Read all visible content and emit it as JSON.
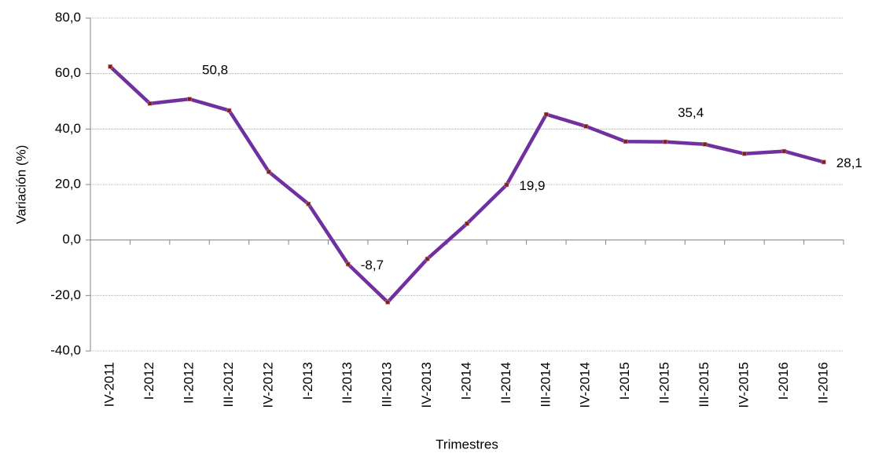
{
  "chart_data": {
    "type": "line",
    "x_label": "Trimestres",
    "y_label": "Variación (%)",
    "categories": [
      "IV-2011",
      "I-2012",
      "II-2012",
      "III-2012",
      "IV-2012",
      "I-2013",
      "II-2013",
      "III-2013",
      "IV-2013",
      "I-2014",
      "II-2014",
      "III-2014",
      "IV-2014",
      "I-2015",
      "II-2015",
      "III-2015",
      "IV-2015",
      "I-2016",
      "II-2016"
    ],
    "series": [
      {
        "name": "Variación",
        "color": "#7030a0",
        "values": [
          62.5,
          49.2,
          50.8,
          46.7,
          24.6,
          13.0,
          -8.7,
          -22.4,
          -6.8,
          5.9,
          19.9,
          45.3,
          41.0,
          35.5,
          35.4,
          34.5,
          31.1,
          32.0,
          28.1
        ],
        "value_labels": [
          null,
          null,
          "50,8",
          null,
          null,
          null,
          "-8,7",
          null,
          null,
          null,
          "19,9",
          null,
          null,
          null,
          "35,4",
          null,
          null,
          null,
          "28,1"
        ]
      }
    ],
    "ylim": [
      -40,
      80
    ],
    "yticks": [
      {
        "value": -40,
        "label": "-40,0"
      },
      {
        "value": -20,
        "label": "-20,0"
      },
      {
        "value": 0,
        "label": "0,0"
      },
      {
        "value": 20,
        "label": "20,0"
      },
      {
        "value": 40,
        "label": "40,0"
      },
      {
        "value": 60,
        "label": "60,0"
      },
      {
        "value": 80,
        "label": "80,0"
      }
    ],
    "grid": true
  }
}
